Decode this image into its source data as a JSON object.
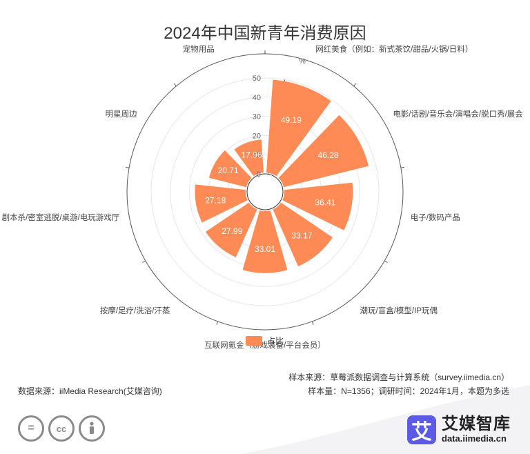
{
  "chart_data": {
    "type": "bar",
    "subtype": "polar-radial-bar",
    "title": "2024年中国新青年消费原因",
    "unit_label": "%",
    "radial_range": [
      0,
      50
    ],
    "radial_ticks": [
      "0",
      "10",
      "20",
      "30",
      "40",
      "50"
    ],
    "categories": [
      "网红美食（例如：新式茶饮/甜品/火锅/日料）",
      "电影/话剧/音乐会/演唱会/脱口秀/展会",
      "电子/数码产品",
      "潮玩/盲盒/模型/IP玩偶",
      "互联网氪金（游戏装备/平台会员）",
      "按摩/足疗/洗浴/汗蒸",
      "剧本杀/密室逃脱/桌游/电玩游戏厅",
      "明星周边",
      "宠物用品"
    ],
    "series": [
      {
        "name": "占比",
        "color": "#fe8b56",
        "values": [
          49.19,
          46.28,
          36.41,
          33.17,
          33.01,
          27.99,
          27.18,
          20.71,
          17.96
        ]
      }
    ],
    "value_labels": [
      "49.19",
      "46.28",
      "36.41",
      "33.17",
      "33.01",
      "27.99",
      "27.18",
      "20.71",
      "17.96"
    ],
    "legend_position": "bottom-center"
  },
  "footer": {
    "source_left": "数据来源：iiMedia Research(艾媒咨询)",
    "sample_source": "样本来源：草莓派数据调查与计算系统（survey.iimedia.cn）",
    "sample_size": "样本量：N=1356；调研时间：2024年1月，本题为多选"
  },
  "brand": {
    "logo_glyph": "艾",
    "name": "艾媒智库",
    "url": "data.iimedia.cn"
  },
  "license_icons": [
    "=",
    "cc",
    "person"
  ]
}
